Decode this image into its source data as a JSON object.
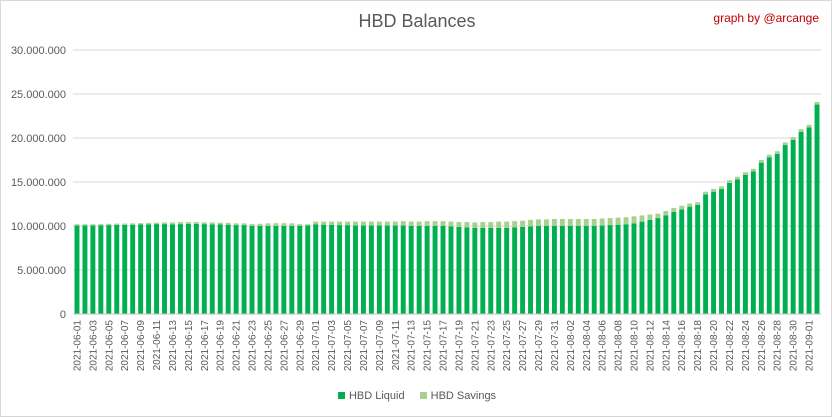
{
  "title": "HBD Balances",
  "credit": "graph by @arcange",
  "chart_data": {
    "type": "bar",
    "stacked": true,
    "title": "HBD Balances",
    "xlabel": "",
    "ylabel": "",
    "ylim": [
      0,
      30000000
    ],
    "y_ticks": [
      0,
      5000000,
      10000000,
      15000000,
      20000000,
      25000000,
      30000000
    ],
    "y_tick_labels": [
      "0",
      "5.000.000",
      "10.000.000",
      "15.000.000",
      "20.000.000",
      "25.000.000",
      "30.000.000"
    ],
    "grid": true,
    "legend_position": "bottom",
    "categories": [
      "2021-06-01",
      "2021-06-02",
      "2021-06-03",
      "2021-06-04",
      "2021-06-05",
      "2021-06-06",
      "2021-06-07",
      "2021-06-08",
      "2021-06-09",
      "2021-06-10",
      "2021-06-11",
      "2021-06-12",
      "2021-06-13",
      "2021-06-14",
      "2021-06-15",
      "2021-06-16",
      "2021-06-17",
      "2021-06-18",
      "2021-06-19",
      "2021-06-20",
      "2021-06-21",
      "2021-06-22",
      "2021-06-23",
      "2021-06-24",
      "2021-06-25",
      "2021-06-26",
      "2021-06-27",
      "2021-06-28",
      "2021-06-29",
      "2021-06-30",
      "2021-07-01",
      "2021-07-02",
      "2021-07-03",
      "2021-07-04",
      "2021-07-05",
      "2021-07-06",
      "2021-07-07",
      "2021-07-08",
      "2021-07-09",
      "2021-07-10",
      "2021-07-11",
      "2021-07-12",
      "2021-07-13",
      "2021-07-14",
      "2021-07-15",
      "2021-07-16",
      "2021-07-17",
      "2021-07-18",
      "2021-07-19",
      "2021-07-20",
      "2021-07-21",
      "2021-07-22",
      "2021-07-23",
      "2021-07-24",
      "2021-07-25",
      "2021-07-26",
      "2021-07-27",
      "2021-07-28",
      "2021-07-29",
      "2021-07-30",
      "2021-07-31",
      "2021-08-01",
      "2021-08-02",
      "2021-08-03",
      "2021-08-04",
      "2021-08-05",
      "2021-08-06",
      "2021-08-07",
      "2021-08-08",
      "2021-08-09",
      "2021-08-10",
      "2021-08-11",
      "2021-08-12",
      "2021-08-13",
      "2021-08-14",
      "2021-08-15",
      "2021-08-16",
      "2021-08-17",
      "2021-08-18",
      "2021-08-19",
      "2021-08-20",
      "2021-08-21",
      "2021-08-22",
      "2021-08-23",
      "2021-08-24",
      "2021-08-25",
      "2021-08-26",
      "2021-08-27",
      "2021-08-28",
      "2021-08-29",
      "2021-08-30",
      "2021-08-31",
      "2021-09-01",
      "2021-09-02"
    ],
    "tick_labels": [
      "2021-06-01",
      "2021-06-03",
      "2021-06-05",
      "2021-06-07",
      "2021-06-09",
      "2021-06-11",
      "2021-06-13",
      "2021-06-15",
      "2021-06-17",
      "2021-06-19",
      "2021-06-21",
      "2021-06-23",
      "2021-06-25",
      "2021-06-27",
      "2021-06-29",
      "2021-07-01",
      "2021-07-03",
      "2021-07-05",
      "2021-07-07",
      "2021-07-09",
      "2021-07-11",
      "2021-07-13",
      "2021-07-15",
      "2021-07-17",
      "2021-07-19",
      "2021-07-21",
      "2021-07-23",
      "2021-07-25",
      "2021-07-27",
      "2021-07-29",
      "2021-07-31",
      "2021-08-02",
      "2021-08-04",
      "2021-08-06",
      "2021-08-08",
      "2021-08-10",
      "2021-08-12",
      "2021-08-14",
      "2021-08-16",
      "2021-08-18",
      "2021-08-20",
      "2021-08-22",
      "2021-08-24",
      "2021-08-26",
      "2021-08-28",
      "2021-08-30",
      "2021-09-01"
    ],
    "series": [
      {
        "name": "HBD Liquid",
        "color": "#00b050",
        "values": [
          10050000,
          10050000,
          10050000,
          10080000,
          10100000,
          10120000,
          10130000,
          10150000,
          10180000,
          10200000,
          10220000,
          10220000,
          10200000,
          10220000,
          10250000,
          10250000,
          10220000,
          10200000,
          10180000,
          10150000,
          10100000,
          10100000,
          10000000,
          10000000,
          10000000,
          10000000,
          10000000,
          10000000,
          10000000,
          10050000,
          10200000,
          10150000,
          10120000,
          10100000,
          10100000,
          10050000,
          10050000,
          10050000,
          10050000,
          10050000,
          10050000,
          10050000,
          10000000,
          10000000,
          10000000,
          10000000,
          10000000,
          9950000,
          9900000,
          9850000,
          9800000,
          9800000,
          9800000,
          9800000,
          9800000,
          9850000,
          9900000,
          9950000,
          10000000,
          10000000,
          10000000,
          10000000,
          10000000,
          10000000,
          10000000,
          10000000,
          10050000,
          10100000,
          10150000,
          10200000,
          10300000,
          10500000,
          10700000,
          10900000,
          11200000,
          11600000,
          11900000,
          12200000,
          12400000,
          13600000,
          13900000,
          14200000,
          14900000,
          15300000,
          15800000,
          16200000,
          17200000,
          17800000,
          18200000,
          19200000,
          19800000,
          20700000,
          21200000,
          23800000
        ]
      },
      {
        "name": "HBD Savings",
        "color": "#a9d18e",
        "values": [
          150000,
          150000,
          150000,
          150000,
          150000,
          150000,
          150000,
          150000,
          150000,
          150000,
          150000,
          180000,
          200000,
          220000,
          200000,
          200000,
          200000,
          200000,
          200000,
          200000,
          200000,
          200000,
          220000,
          250000,
          300000,
          320000,
          320000,
          300000,
          200000,
          150000,
          300000,
          350000,
          380000,
          400000,
          400000,
          450000,
          450000,
          450000,
          450000,
          450000,
          450000,
          500000,
          500000,
          500000,
          550000,
          550000,
          550000,
          550000,
          550000,
          600000,
          600000,
          650000,
          650000,
          700000,
          700000,
          700000,
          700000,
          750000,
          750000,
          750000,
          800000,
          800000,
          800000,
          800000,
          800000,
          800000,
          800000,
          800000,
          800000,
          800000,
          800000,
          700000,
          600000,
          500000,
          500000,
          450000,
          400000,
          350000,
          300000,
          300000,
          300000,
          300000,
          300000,
          300000,
          300000,
          300000,
          300000,
          300000,
          300000,
          300000,
          300000,
          300000,
          300000,
          300000
        ]
      }
    ]
  },
  "legend": {
    "items": [
      {
        "label": "HBD Liquid",
        "color": "#00b050"
      },
      {
        "label": "HBD Savings",
        "color": "#a9d18e"
      }
    ]
  }
}
